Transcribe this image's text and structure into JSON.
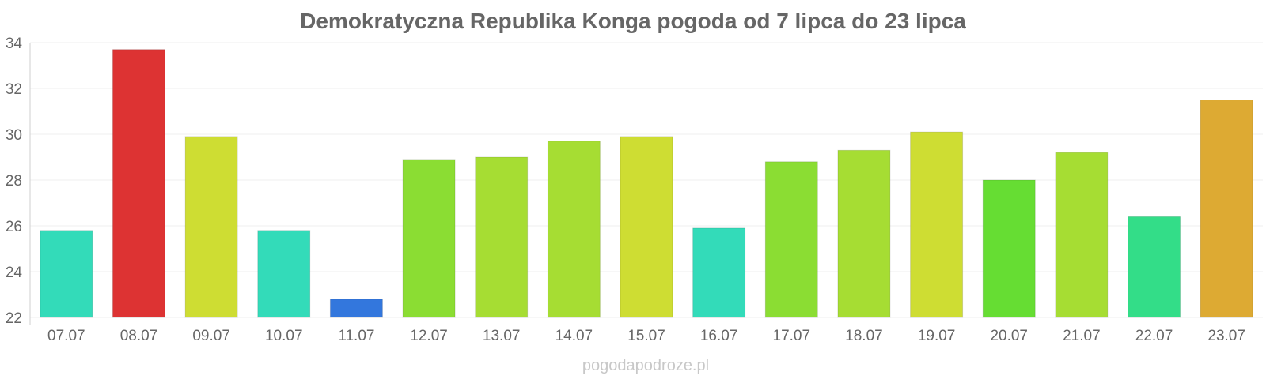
{
  "chart_data": {
    "type": "bar",
    "title": "Demokratyczna Republika Konga pogoda od 7 lipca do 23 lipca",
    "xlabel": "",
    "ylabel": "",
    "ylim": [
      22,
      34
    ],
    "yticks": [
      "22",
      "24",
      "26",
      "28",
      "30",
      "32",
      "34"
    ],
    "grid": true,
    "legend": "none",
    "categories": [
      "07.07",
      "08.07",
      "09.07",
      "10.07",
      "11.07",
      "12.07",
      "13.07",
      "14.07",
      "15.07",
      "16.07",
      "17.07",
      "18.07",
      "19.07",
      "20.07",
      "21.07",
      "22.07",
      "23.07"
    ],
    "values": [
      25.8,
      33.7,
      29.9,
      25.8,
      22.8,
      28.9,
      29.0,
      29.7,
      29.9,
      25.9,
      28.8,
      29.3,
      30.1,
      28.0,
      29.2,
      26.4,
      31.5
    ],
    "colors": [
      "#33dbb9",
      "#dd3333",
      "#cedd33",
      "#33dbb9",
      "#3377dd",
      "#8bdd33",
      "#a6dd33",
      "#a6dd33",
      "#cedd33",
      "#33dbb9",
      "#8bdd33",
      "#a6dd33",
      "#cedd33",
      "#66dd33",
      "#a6dd33",
      "#33dd88",
      "#ddaa33"
    ]
  },
  "watermark": "pogodapodroze.pl"
}
